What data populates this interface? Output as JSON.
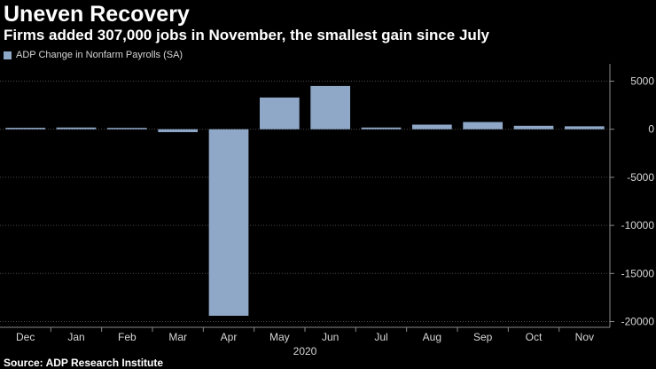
{
  "header": {
    "title": "Uneven Recovery",
    "subtitle": "Firms added 307,000 jobs in November, the smallest gain since July"
  },
  "legend": {
    "label": "ADP Change in Nonfarm Payrolls (SA)"
  },
  "source": "Source: ADP Research Institute",
  "colors": {
    "bar": "#8fa8c8",
    "background": "#000000"
  },
  "chart_data": {
    "type": "bar",
    "title": "Uneven Recovery",
    "subtitle": "Firms added 307,000 jobs in November, the smallest gain since July",
    "categories": [
      "Dec",
      "Jan",
      "Feb",
      "Mar",
      "Apr",
      "May",
      "Jun",
      "Jul",
      "Aug",
      "Sep",
      "Oct",
      "Nov"
    ],
    "year_label": "2020",
    "series": [
      {
        "name": "ADP Change in Nonfarm Payrolls (SA)",
        "values": [
          150,
          180,
          140,
          -300,
          -19400,
          3300,
          4500,
          180,
          480,
          750,
          360,
          307
        ]
      }
    ],
    "ylim": [
      -20600,
      6800
    ],
    "yticks": [
      5000,
      0,
      -5000,
      -10000,
      -15000,
      -20000
    ],
    "ytick_labels": [
      "5000",
      "0",
      "-5000",
      "-10000",
      "-15000",
      "-20000"
    ],
    "y_axis_side": "right",
    "grid": true,
    "xlabel": "",
    "ylabel": ""
  }
}
